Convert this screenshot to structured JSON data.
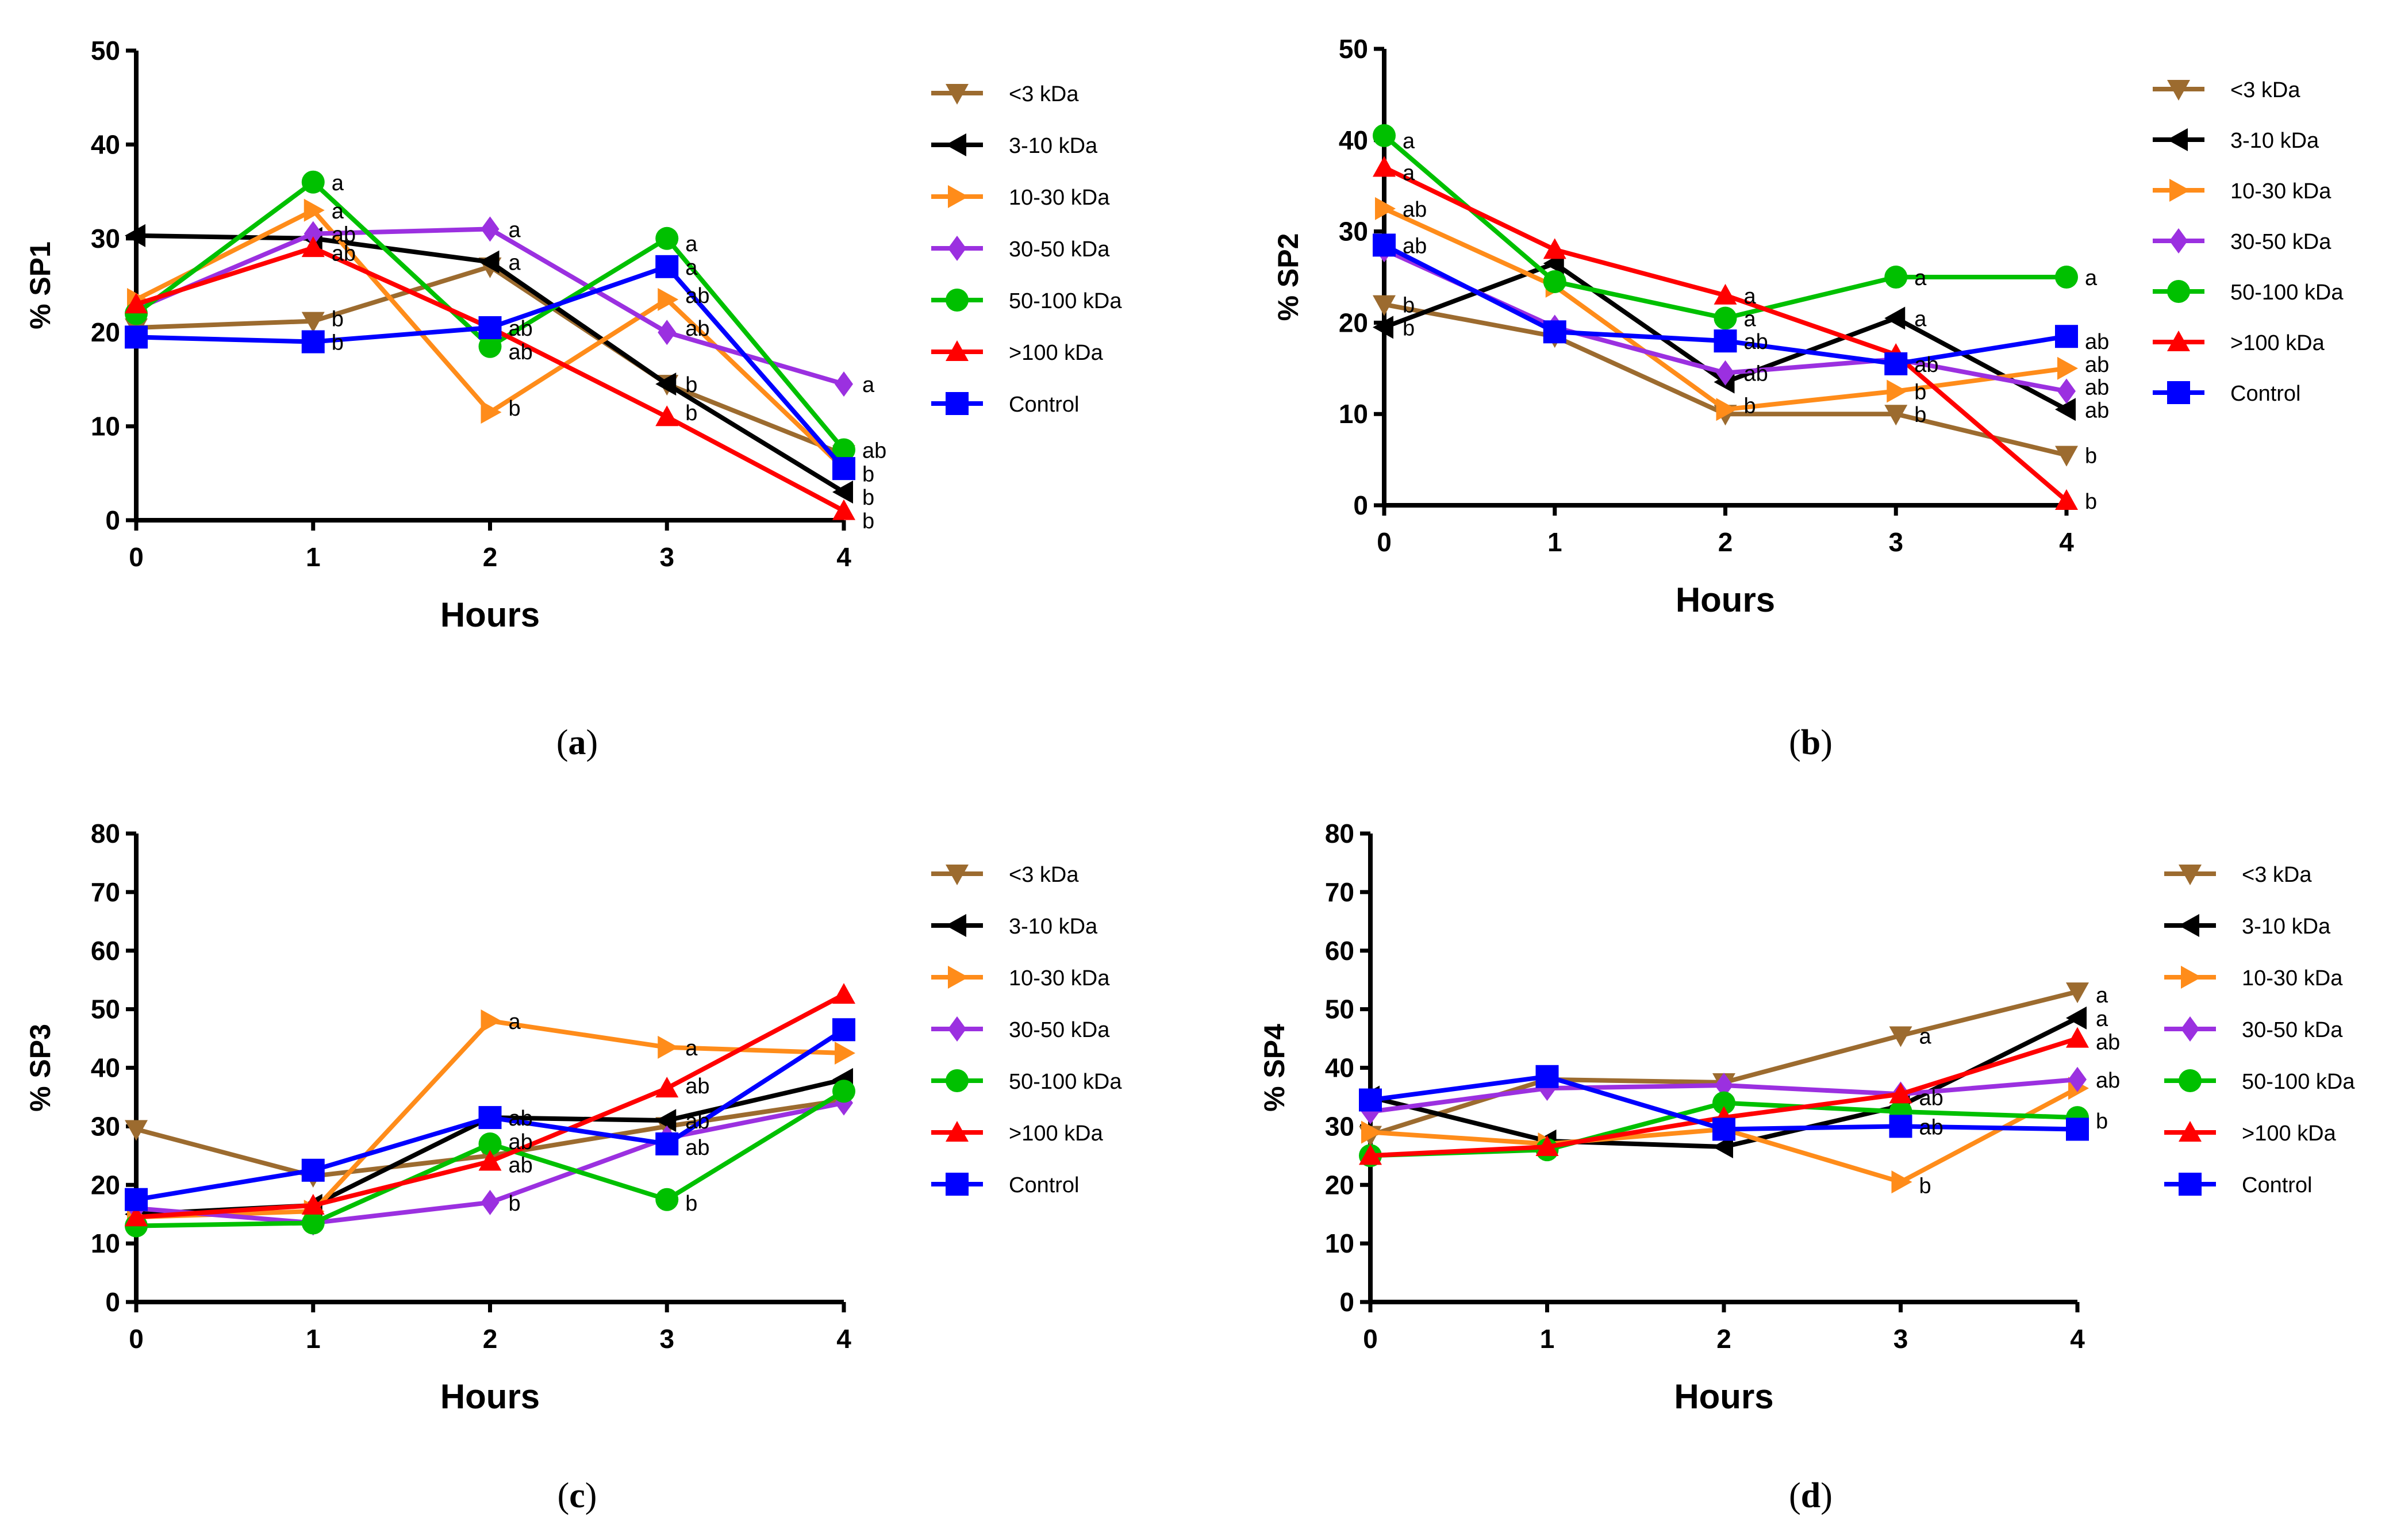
{
  "legend": [
    "<3 kDa",
    "3-10 kDa",
    "10-30 kDa",
    "30-50 kDa",
    "50-100 kDa",
    ">100 kDa",
    "Control"
  ],
  "series_colors": [
    "#9c6b2f",
    "#000000",
    "#ff8c1a",
    "#9b30e0",
    "#00c000",
    "#ff0000",
    "#0000ff"
  ],
  "series_markers": [
    "triangle-down",
    "triangle-left",
    "triangle-right",
    "diamond",
    "circle",
    "triangle-up",
    "square"
  ],
  "chart_data": [
    {
      "type": "line",
      "caption_label": "a",
      "title": "",
      "xlabel": "Hours",
      "ylabel": "% SP1",
      "x": [
        0,
        1,
        2,
        3,
        4
      ],
      "xticks": [
        "0",
        "1",
        "2",
        "3",
        "4"
      ],
      "yticks": [
        "0",
        "10",
        "20",
        "30",
        "40",
        "50"
      ],
      "ylim": [
        0,
        50
      ],
      "series": [
        {
          "name": "<3 kDa",
          "values": [
            20.5,
            21.2,
            27,
            14.5,
            7
          ]
        },
        {
          "name": "3-10 kDa",
          "values": [
            30.3,
            30,
            27.5,
            14.5,
            3
          ]
        },
        {
          "name": "10-30 kDa",
          "values": [
            23.5,
            33,
            11.5,
            23.5,
            5.5
          ]
        },
        {
          "name": "30-50 kDa",
          "values": [
            22.5,
            30.5,
            31,
            20,
            14.5
          ]
        },
        {
          "name": "50-100 kDa",
          "values": [
            22,
            36,
            18.5,
            30,
            7.5
          ]
        },
        {
          "name": ">100 kDa",
          "values": [
            23,
            29,
            20.5,
            11,
            1
          ]
        },
        {
          "name": "Control",
          "values": [
            19.5,
            19,
            20.5,
            27,
            5.5
          ]
        }
      ],
      "annotations": [
        {
          "x": 1,
          "y": 36,
          "text": "a"
        },
        {
          "x": 1,
          "y": 33,
          "text": "a"
        },
        {
          "x": 1,
          "y": 30.5,
          "text": "ab"
        },
        {
          "x": 1,
          "y": 28.5,
          "text": "ab"
        },
        {
          "x": 1,
          "y": 21.5,
          "text": "b"
        },
        {
          "x": 1,
          "y": 19,
          "text": "b"
        },
        {
          "x": 2,
          "y": 31,
          "text": "a"
        },
        {
          "x": 2,
          "y": 27.5,
          "text": "a"
        },
        {
          "x": 2,
          "y": 20.5,
          "text": "ab"
        },
        {
          "x": 2,
          "y": 18,
          "text": "ab"
        },
        {
          "x": 2,
          "y": 12,
          "text": "b"
        },
        {
          "x": 3,
          "y": 29.5,
          "text": "a"
        },
        {
          "x": 3,
          "y": 27,
          "text": "a"
        },
        {
          "x": 3,
          "y": 24,
          "text": "ab"
        },
        {
          "x": 3,
          "y": 20.5,
          "text": "ab"
        },
        {
          "x": 3,
          "y": 14.5,
          "text": "b"
        },
        {
          "x": 3,
          "y": 11.5,
          "text": "b"
        },
        {
          "x": 4,
          "y": 14.5,
          "text": "a"
        },
        {
          "x": 4,
          "y": 7.5,
          "text": "ab"
        },
        {
          "x": 4,
          "y": 5,
          "text": "b"
        },
        {
          "x": 4,
          "y": 2.5,
          "text": "b"
        },
        {
          "x": 4,
          "y": 0,
          "text": "b"
        }
      ]
    },
    {
      "type": "line",
      "caption_label": "b",
      "title": "",
      "xlabel": "Hours",
      "ylabel": "% SP2",
      "x": [
        0,
        1,
        2,
        3,
        4
      ],
      "xticks": [
        "0",
        "1",
        "2",
        "3",
        "4"
      ],
      "yticks": [
        "0",
        "10",
        "20",
        "30",
        "40",
        "50"
      ],
      "ylim": [
        0,
        50
      ],
      "series": [
        {
          "name": "<3 kDa",
          "values": [
            22,
            18.5,
            10,
            10,
            5.5
          ]
        },
        {
          "name": "3-10 kDa",
          "values": [
            19.5,
            26.5,
            13.5,
            20.5,
            10.5
          ]
        },
        {
          "name": "10-30 kDa",
          "values": [
            32.5,
            24,
            10.5,
            12.5,
            15
          ]
        },
        {
          "name": "30-50 kDa",
          "values": [
            28,
            19.5,
            14.5,
            16,
            12.5
          ]
        },
        {
          "name": "50-100 kDa",
          "values": [
            40.5,
            24.5,
            20.5,
            25,
            25
          ]
        },
        {
          "name": ">100 kDa",
          "values": [
            37,
            28,
            23,
            16.5,
            0.5
          ]
        },
        {
          "name": "Control",
          "values": [
            28.5,
            19,
            18,
            15.5,
            18.5
          ]
        }
      ],
      "annotations": [
        {
          "x": 0,
          "y": 40,
          "text": "a"
        },
        {
          "x": 0,
          "y": 36.5,
          "text": "a"
        },
        {
          "x": 0,
          "y": 32.5,
          "text": "ab"
        },
        {
          "x": 0,
          "y": 28.5,
          "text": "ab"
        },
        {
          "x": 0,
          "y": 22,
          "text": "b"
        },
        {
          "x": 0,
          "y": 19.5,
          "text": "b"
        },
        {
          "x": 2,
          "y": 23,
          "text": "a"
        },
        {
          "x": 2,
          "y": 20.5,
          "text": "a"
        },
        {
          "x": 2,
          "y": 18,
          "text": "ab"
        },
        {
          "x": 2,
          "y": 14.5,
          "text": "ab"
        },
        {
          "x": 2,
          "y": 11,
          "text": "b"
        },
        {
          "x": 3,
          "y": 25,
          "text": "a"
        },
        {
          "x": 3,
          "y": 20.5,
          "text": "a"
        },
        {
          "x": 3,
          "y": 15.5,
          "text": "ab"
        },
        {
          "x": 3,
          "y": 12.5,
          "text": "b"
        },
        {
          "x": 3,
          "y": 10,
          "text": "b"
        },
        {
          "x": 4,
          "y": 25,
          "text": "a"
        },
        {
          "x": 4,
          "y": 18,
          "text": "ab"
        },
        {
          "x": 4,
          "y": 15.5,
          "text": "ab"
        },
        {
          "x": 4,
          "y": 13,
          "text": "ab"
        },
        {
          "x": 4,
          "y": 10.5,
          "text": "ab"
        },
        {
          "x": 4,
          "y": 5.5,
          "text": "b"
        },
        {
          "x": 4,
          "y": 0.5,
          "text": "b"
        }
      ]
    },
    {
      "type": "line",
      "caption_label": "c",
      "title": "",
      "xlabel": "Hours",
      "ylabel": "% SP3",
      "x": [
        0,
        1,
        2,
        3,
        4
      ],
      "xticks": [
        "0",
        "1",
        "2",
        "3",
        "4"
      ],
      "yticks": [
        "0",
        "10",
        "20",
        "30",
        "40",
        "50",
        "60",
        "70",
        "80"
      ],
      "ylim": [
        0,
        80
      ],
      "series": [
        {
          "name": "<3 kDa",
          "values": [
            29.5,
            21.5,
            25,
            30,
            34.5
          ]
        },
        {
          "name": "3-10 kDa",
          "values": [
            15,
            16.5,
            31.5,
            31,
            38
          ]
        },
        {
          "name": "10-30 kDa",
          "values": [
            14.5,
            15.5,
            48,
            43.5,
            42.5
          ]
        },
        {
          "name": "30-50 kDa",
          "values": [
            16,
            13.5,
            17,
            28,
            34
          ]
        },
        {
          "name": "50-100 kDa",
          "values": [
            13,
            13.5,
            27,
            17.5,
            36
          ]
        },
        {
          "name": ">100 kDa",
          "values": [
            14.5,
            16.5,
            24,
            36.5,
            52.5
          ]
        },
        {
          "name": "Control",
          "values": [
            17.5,
            22.5,
            31.5,
            27,
            46.5
          ]
        }
      ],
      "annotations": [
        {
          "x": 2,
          "y": 48,
          "text": "a"
        },
        {
          "x": 2,
          "y": 31.5,
          "text": "ab"
        },
        {
          "x": 2,
          "y": 27.5,
          "text": "ab"
        },
        {
          "x": 2,
          "y": 23.5,
          "text": "ab"
        },
        {
          "x": 2,
          "y": 17,
          "text": "b"
        },
        {
          "x": 3,
          "y": 43.5,
          "text": "a"
        },
        {
          "x": 3,
          "y": 37,
          "text": "ab"
        },
        {
          "x": 3,
          "y": 31,
          "text": "ab"
        },
        {
          "x": 3,
          "y": 26.5,
          "text": "ab"
        },
        {
          "x": 3,
          "y": 17,
          "text": "b"
        }
      ]
    },
    {
      "type": "line",
      "caption_label": "d",
      "title": "",
      "xlabel": "Hours",
      "ylabel": "% SP4",
      "x": [
        0,
        1,
        2,
        3,
        4
      ],
      "xticks": [
        "0",
        "1",
        "2",
        "3",
        "4"
      ],
      "yticks": [
        "0",
        "10",
        "20",
        "30",
        "40",
        "50",
        "60",
        "70",
        "80"
      ],
      "ylim": [
        0,
        80
      ],
      "series": [
        {
          "name": "<3 kDa",
          "values": [
            28.5,
            38,
            37.5,
            45.5,
            53
          ]
        },
        {
          "name": "3-10 kDa",
          "values": [
            35,
            27.5,
            26.5,
            33.5,
            48.5
          ]
        },
        {
          "name": "10-30 kDa",
          "values": [
            29,
            27,
            29.5,
            20.5,
            36.5
          ]
        },
        {
          "name": "30-50 kDa",
          "values": [
            32.5,
            36.5,
            37,
            35.5,
            38
          ]
        },
        {
          "name": "50-100 kDa",
          "values": [
            25,
            26,
            34,
            32.5,
            31.5
          ]
        },
        {
          "name": ">100 kDa",
          "values": [
            25,
            26.5,
            31.5,
            35.5,
            45
          ]
        },
        {
          "name": "Control",
          "values": [
            34.5,
            38.5,
            29.5,
            30,
            29.5
          ]
        }
      ],
      "annotations": [
        {
          "x": 3,
          "y": 45.5,
          "text": "a"
        },
        {
          "x": 3,
          "y": 35,
          "text": "ab"
        },
        {
          "x": 3,
          "y": 30,
          "text": "ab"
        },
        {
          "x": 3,
          "y": 20,
          "text": "b"
        },
        {
          "x": 4,
          "y": 52.5,
          "text": "a"
        },
        {
          "x": 4,
          "y": 48.5,
          "text": "a"
        },
        {
          "x": 4,
          "y": 44.5,
          "text": "ab"
        },
        {
          "x": 4,
          "y": 38,
          "text": "ab"
        },
        {
          "x": 4,
          "y": 31,
          "text": "b"
        }
      ]
    }
  ]
}
